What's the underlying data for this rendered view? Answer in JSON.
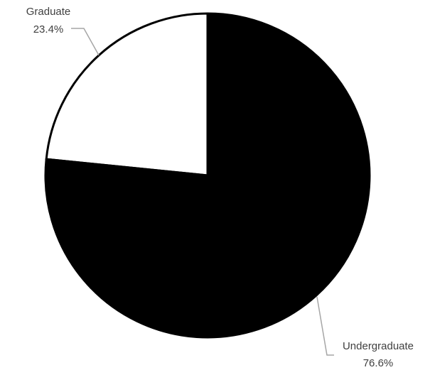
{
  "chart_data": {
    "type": "pie",
    "title": "",
    "categories": [
      "Graduate",
      "Undergraduate"
    ],
    "values": [
      23.4,
      76.6
    ],
    "value_labels": [
      "23.4%",
      "76.6%"
    ],
    "slice_colors": [
      "#ffffff",
      "#000000"
    ],
    "slice_outline_color": "#000000",
    "leader_line_color": "#a6a6a6",
    "label_color": "#404040",
    "legend": "none",
    "start_angle": "12 o'clock",
    "direction": "counterclockwise"
  }
}
